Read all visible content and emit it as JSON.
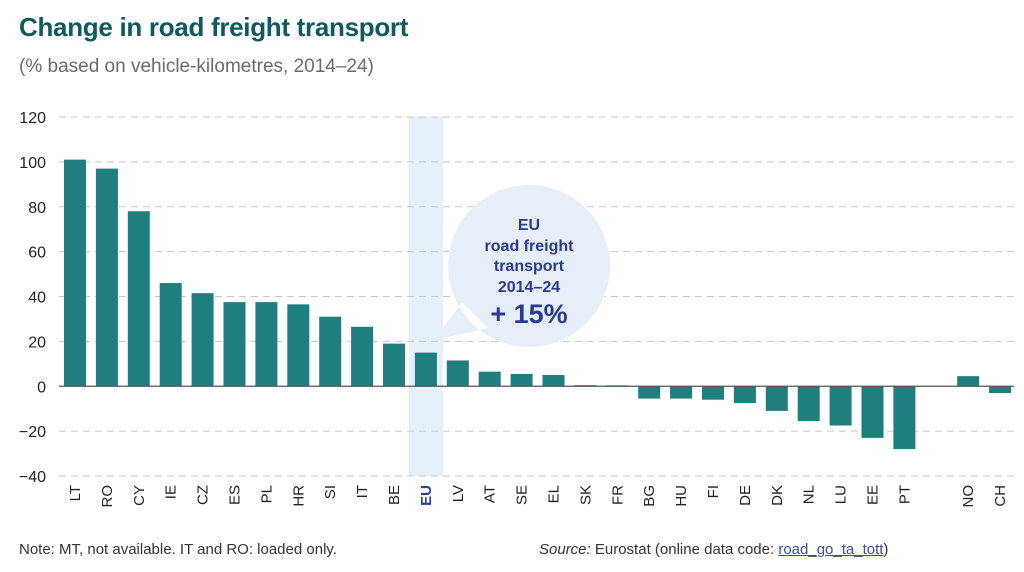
{
  "title": "Change in road freight transport",
  "subtitle": "(% based on vehicle-kilometres, 2014–24)",
  "colors": {
    "bar": "#1f7f7e",
    "highlight_band": "#e6f0fb",
    "bubble": "#e6eef9",
    "bubble_text": "#2b3990",
    "title": "#0e5a5f",
    "grid": "#c8c8c8",
    "axis": "#555555"
  },
  "chart_data": {
    "type": "bar",
    "title": "Change in road freight transport",
    "subtitle": "(% based on vehicle-kilometres, 2014–24)",
    "xlabel": "",
    "ylabel": "",
    "ylim": [
      -40,
      120
    ],
    "yticks": [
      120,
      100,
      80,
      60,
      40,
      20,
      0,
      -20,
      -40
    ],
    "ytick_labels": [
      "120",
      "100",
      "80",
      "60",
      "40",
      "20",
      "0",
      "−20",
      "−40"
    ],
    "grid": true,
    "highlight_category": "EU",
    "categories": [
      "LT",
      "RO",
      "CY",
      "IE",
      "CZ",
      "ES",
      "PL",
      "HR",
      "SI",
      "IT",
      "BE",
      "EU",
      "LV",
      "AT",
      "SE",
      "EL",
      "SK",
      "FR",
      "BG",
      "HU",
      "FI",
      "DE",
      "DK",
      "NL",
      "LU",
      "EE",
      "PT",
      "",
      "NO",
      "CH"
    ],
    "values": [
      101,
      97,
      78,
      46,
      41.5,
      37.5,
      37.5,
      36.5,
      31,
      26.5,
      19,
      15,
      11.5,
      6.5,
      5.5,
      5,
      0.5,
      0.4,
      -5.5,
      -5.5,
      -6,
      -7.5,
      -11,
      -15.5,
      -17.5,
      -23,
      -28,
      null,
      4.5,
      -3
    ],
    "annotation": {
      "lines": [
        "EU",
        "road freight",
        "transport",
        "2014–24"
      ],
      "value": "+ 15%"
    }
  },
  "footer": {
    "note": "Note: MT, not available. IT and RO: loaded only.",
    "source_label": "Source:",
    "source_text": " Eurostat (online data code: ",
    "source_link": "road_go_ta_tott",
    "source_close": ")"
  }
}
